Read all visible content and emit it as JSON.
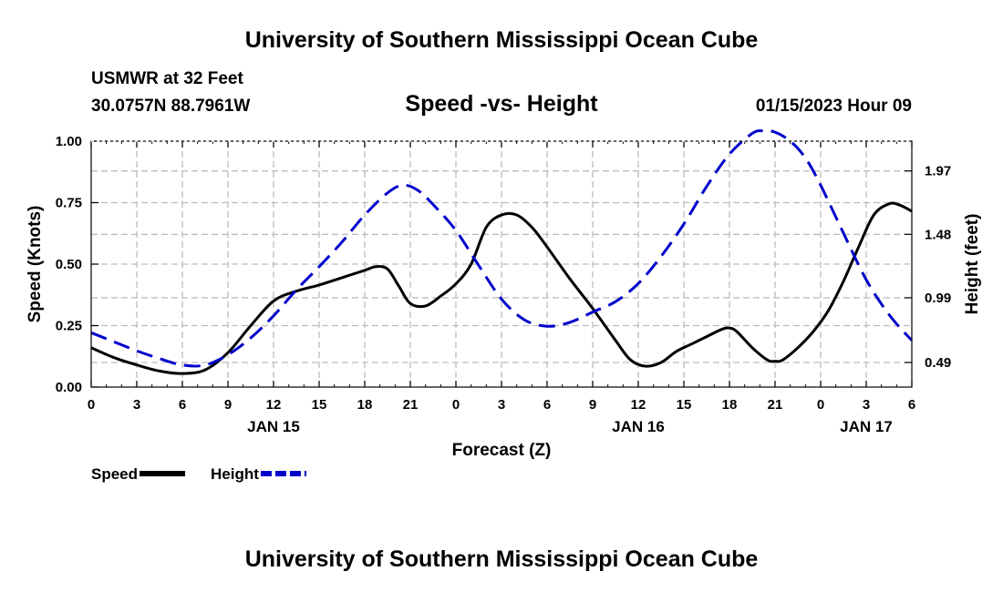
{
  "header": {
    "title": "University of Southern Mississippi Ocean Cube",
    "station": "USMWR at 32 Feet",
    "coordinates": "30.0757N  88.7961W",
    "subtitle": "Speed -vs- Height",
    "timestamp": "01/15/2023 Hour 09"
  },
  "footer": {
    "title": "University of Southern Mississippi Ocean Cube"
  },
  "chart_data": {
    "type": "line",
    "title": "Speed -vs- Height",
    "xlabel": "Forecast (Z)",
    "ylabel": "Speed (Knots)",
    "y2label": "Height (feet)",
    "x_range": [
      0,
      54
    ],
    "ylim": [
      0,
      1.0
    ],
    "y2lim": [
      0.3,
      2.2
    ],
    "grid": true,
    "x_ticks": [
      {
        "x": 0,
        "label": "0"
      },
      {
        "x": 3,
        "label": "3"
      },
      {
        "x": 6,
        "label": "6"
      },
      {
        "x": 9,
        "label": "9"
      },
      {
        "x": 12,
        "label": "12"
      },
      {
        "x": 15,
        "label": "15"
      },
      {
        "x": 18,
        "label": "18"
      },
      {
        "x": 21,
        "label": "21"
      },
      {
        "x": 24,
        "label": "0"
      },
      {
        "x": 27,
        "label": "3"
      },
      {
        "x": 30,
        "label": "6"
      },
      {
        "x": 33,
        "label": "9"
      },
      {
        "x": 36,
        "label": "12"
      },
      {
        "x": 39,
        "label": "15"
      },
      {
        "x": 42,
        "label": "18"
      },
      {
        "x": 45,
        "label": "21"
      },
      {
        "x": 48,
        "label": "0"
      },
      {
        "x": 51,
        "label": "3"
      },
      {
        "x": 54,
        "label": "6"
      }
    ],
    "date_labels": [
      {
        "x": 12,
        "label": "JAN 15"
      },
      {
        "x": 36,
        "label": "JAN 16"
      },
      {
        "x": 51,
        "label": "JAN 17"
      }
    ],
    "y_ticks": [
      {
        "value": 0.0,
        "label": "0.00"
      },
      {
        "value": 0.25,
        "label": "0.25"
      },
      {
        "value": 0.5,
        "label": "0.50"
      },
      {
        "value": 0.75,
        "label": "0.75"
      },
      {
        "value": 1.0,
        "label": "1.00"
      }
    ],
    "y2_ticks": [
      {
        "value": 0.49,
        "label": "0.49"
      },
      {
        "value": 0.99,
        "label": "0.99"
      },
      {
        "value": 1.48,
        "label": "1.48"
      },
      {
        "value": 1.97,
        "label": "1.97"
      }
    ],
    "series": [
      {
        "name": "Speed",
        "axis": "left",
        "color": "#000000",
        "dash": "solid",
        "x": [
          0,
          1.5,
          3,
          4.5,
          6,
          7.5,
          9,
          10.5,
          12,
          13.5,
          15,
          16.5,
          18,
          18.75,
          19.5,
          20.25,
          21,
          22,
          23,
          24,
          25,
          26,
          27,
          28,
          29,
          30,
          31.5,
          33,
          34.5,
          35.5,
          36.5,
          37.5,
          38.5,
          39.5,
          40.5,
          41.5,
          42,
          42.5,
          43.5,
          44.5,
          45,
          45.5,
          46.5,
          47.5,
          48.5,
          49.5,
          50.5,
          51.5,
          52.5,
          53.2,
          54
        ],
        "values": [
          0.16,
          0.12,
          0.09,
          0.065,
          0.055,
          0.07,
          0.14,
          0.25,
          0.35,
          0.39,
          0.415,
          0.445,
          0.475,
          0.49,
          0.48,
          0.41,
          0.34,
          0.33,
          0.37,
          0.42,
          0.5,
          0.65,
          0.7,
          0.7,
          0.65,
          0.57,
          0.44,
          0.32,
          0.19,
          0.11,
          0.085,
          0.1,
          0.145,
          0.175,
          0.205,
          0.235,
          0.24,
          0.225,
          0.16,
          0.11,
          0.105,
          0.11,
          0.16,
          0.225,
          0.31,
          0.43,
          0.57,
          0.7,
          0.745,
          0.74,
          0.715
        ]
      },
      {
        "name": "Height",
        "axis": "right",
        "color": "#0000cc",
        "dash": "dashed",
        "x": [
          0,
          1.5,
          3,
          4.5,
          6,
          7.5,
          9,
          10.5,
          12,
          13.5,
          15,
          16.5,
          18,
          19.5,
          20.5,
          21.5,
          22.5,
          24,
          25.5,
          27,
          28.5,
          30,
          31.5,
          33,
          34.5,
          36,
          37.5,
          39,
          40.5,
          42,
          43.5,
          44.25,
          45,
          46,
          47,
          48,
          49.5,
          51,
          52.5,
          54
        ],
        "values": [
          0.72,
          0.65,
          0.58,
          0.52,
          0.47,
          0.47,
          0.55,
          0.68,
          0.85,
          1.05,
          1.23,
          1.42,
          1.63,
          1.8,
          1.86,
          1.82,
          1.71,
          1.51,
          1.24,
          0.98,
          0.82,
          0.77,
          0.8,
          0.88,
          0.96,
          1.1,
          1.31,
          1.56,
          1.85,
          2.1,
          2.26,
          2.28,
          2.27,
          2.2,
          2.07,
          1.86,
          1.49,
          1.13,
          0.86,
          0.66
        ]
      }
    ],
    "legend": {
      "placement": "bottom-left",
      "items": [
        {
          "label": "Speed",
          "color": "#000000",
          "dash": "solid"
        },
        {
          "label": "Height",
          "color": "#0000cc",
          "dash": "dashed"
        }
      ]
    }
  }
}
